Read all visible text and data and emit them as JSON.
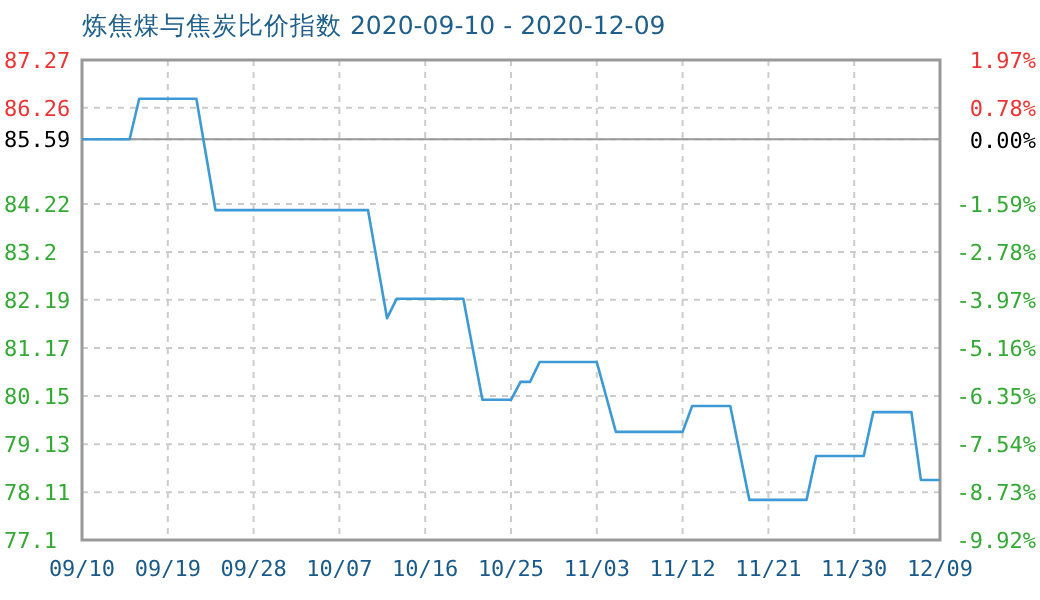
{
  "chart_data": {
    "type": "line",
    "title": "炼焦煤与焦炭比价指数 2020-09-10 - 2020-12-09",
    "x": [
      "2020-09-10",
      "2020-09-15",
      "2020-09-16",
      "2020-09-22",
      "2020-09-24",
      "2020-10-10",
      "2020-10-12",
      "2020-10-13",
      "2020-10-20",
      "2020-10-22",
      "2020-10-25",
      "2020-10-26",
      "2020-10-27",
      "2020-10-28",
      "2020-11-03",
      "2020-11-05",
      "2020-11-12",
      "2020-11-13",
      "2020-11-17",
      "2020-11-19",
      "2020-11-25",
      "2020-11-26",
      "2020-12-01",
      "2020-12-02",
      "2020-12-06",
      "2020-12-07",
      "2020-12-09"
    ],
    "series": [
      {
        "color": "#3d9ad6",
        "values": [
          85.59,
          85.59,
          86.45,
          86.45,
          84.09,
          84.09,
          81.8,
          82.21,
          82.21,
          80.07,
          80.07,
          80.45,
          80.45,
          80.87,
          80.87,
          79.39,
          79.39,
          79.94,
          79.94,
          77.95,
          77.95,
          78.88,
          78.88,
          79.81,
          79.81,
          78.37,
          78.37
        ]
      }
    ],
    "xlim": [
      "2020-09-10",
      "2020-12-09"
    ],
    "xticks": [
      {
        "value": "2020-09-10",
        "label": "09/10"
      },
      {
        "value": "2020-09-19",
        "label": "09/19"
      },
      {
        "value": "2020-09-28",
        "label": "09/28"
      },
      {
        "value": "2020-10-07",
        "label": "10/07"
      },
      {
        "value": "2020-10-16",
        "label": "10/16"
      },
      {
        "value": "2020-10-25",
        "label": "10/25"
      },
      {
        "value": "2020-11-03",
        "label": "11/03"
      },
      {
        "value": "2020-11-12",
        "label": "11/12"
      },
      {
        "value": "2020-11-21",
        "label": "11/21"
      },
      {
        "value": "2020-11-30",
        "label": "11/30"
      },
      {
        "value": "2020-12-09",
        "label": "12/09"
      }
    ],
    "ylim": [
      77.1,
      87.27
    ],
    "yticks": [
      77.1,
      78.11,
      79.13,
      80.15,
      81.17,
      82.19,
      83.2,
      84.22,
      85.59,
      86.26,
      87.27
    ],
    "y2lim": [
      -9.92,
      1.97
    ],
    "y2ticks": [
      {
        "value": -9.92,
        "label": "-9.92%"
      },
      {
        "value": -8.73,
        "label": "-8.73%"
      },
      {
        "value": -7.54,
        "label": "-7.54%"
      },
      {
        "value": -6.35,
        "label": "-6.35%"
      },
      {
        "value": -5.16,
        "label": "-5.16%"
      },
      {
        "value": -3.97,
        "label": "-3.97%"
      },
      {
        "value": -2.78,
        "label": "-2.78%"
      },
      {
        "value": -1.59,
        "label": "-1.59%"
      },
      {
        "value": 0,
        "label": "0.00%"
      },
      {
        "value": 0.78,
        "label": "0.78%"
      },
      {
        "value": 1.97,
        "label": "1.97%"
      }
    ],
    "ref_lines": [
      {
        "axis": "y",
        "value": 85.59,
        "color": "#999999"
      }
    ],
    "grid": true
  }
}
